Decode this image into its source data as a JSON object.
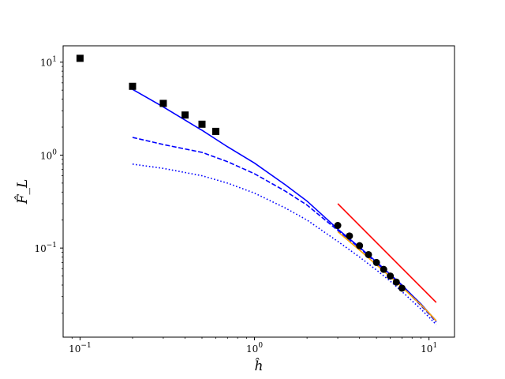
{
  "chart_data": {
    "type": "line",
    "xlabel": "ĥ",
    "ylabel": "F̂_L",
    "xscale": "log",
    "yscale": "log",
    "xlim": [
      0.08,
      14
    ],
    "ylim": [
      0.011,
      15
    ],
    "grid": false,
    "x_ticks": [
      {
        "value": 0.1,
        "base": "10",
        "exp": "−1"
      },
      {
        "value": 1,
        "base": "10",
        "exp": "0"
      },
      {
        "value": 10,
        "base": "10",
        "exp": "1"
      }
    ],
    "y_ticks": [
      {
        "value": 0.1,
        "base": "10",
        "exp": "−1"
      },
      {
        "value": 1,
        "base": "10",
        "exp": "0"
      },
      {
        "value": 10,
        "base": "10",
        "exp": "1"
      }
    ],
    "series": [
      {
        "kind": "line",
        "style": "solid",
        "color": "#0000ff",
        "x": [
          0.2,
          0.3,
          0.5,
          0.7,
          1.0,
          1.5,
          2.0,
          3.0,
          4.0,
          5.0,
          6.0,
          7.0,
          8.0,
          9.0,
          10.0,
          11.0
        ],
        "y": [
          5.1,
          3.3,
          1.85,
          1.23,
          0.82,
          0.48,
          0.32,
          0.16,
          0.102,
          0.071,
          0.052,
          0.04,
          0.031,
          0.025,
          0.02,
          0.0165
        ]
      },
      {
        "kind": "line",
        "style": "dashed",
        "color": "#0000ff",
        "x": [
          0.2,
          0.3,
          0.5,
          0.7,
          1.0,
          1.5,
          2.0,
          3.0,
          4.0,
          5.0,
          6.0,
          7.0,
          8.0,
          9.0,
          10.0,
          11.0
        ],
        "y": [
          1.55,
          1.3,
          1.07,
          0.85,
          0.63,
          0.41,
          0.29,
          0.155,
          0.1,
          0.069,
          0.051,
          0.039,
          0.03,
          0.024,
          0.0195,
          0.016
        ]
      },
      {
        "kind": "line",
        "style": "dotted",
        "color": "#0000ff",
        "x": [
          0.2,
          0.3,
          0.5,
          0.7,
          1.0,
          1.5,
          2.0,
          3.0,
          4.0,
          5.0,
          6.0,
          7.0,
          8.0,
          9.0,
          10.0,
          11.0
        ],
        "y": [
          0.8,
          0.72,
          0.6,
          0.5,
          0.39,
          0.27,
          0.2,
          0.118,
          0.08,
          0.058,
          0.044,
          0.034,
          0.027,
          0.022,
          0.018,
          0.015
        ]
      },
      {
        "kind": "line",
        "style": "solid",
        "color": "#ffa500",
        "x": [
          3.0,
          4.0,
          5.0,
          6.0,
          7.0,
          8.0,
          9.0,
          10.0,
          11.0
        ],
        "y": [
          0.15,
          0.095,
          0.066,
          0.049,
          0.038,
          0.03,
          0.0245,
          0.02,
          0.0165
        ]
      },
      {
        "kind": "line",
        "style": "solid",
        "color": "#ff0000",
        "x": [
          3.0,
          11.0
        ],
        "y": [
          0.3,
          0.026
        ]
      },
      {
        "kind": "markers",
        "marker": "square",
        "color": "#000000",
        "x": [
          0.1,
          0.2,
          0.3,
          0.4,
          0.5,
          0.6
        ],
        "y": [
          11.0,
          5.5,
          3.6,
          2.7,
          2.15,
          1.8
        ]
      },
      {
        "kind": "markers",
        "marker": "circle",
        "color": "#000000",
        "x": [
          3.0,
          3.5,
          4.0,
          4.5,
          5.0,
          5.5,
          6.0,
          6.5,
          7.0
        ],
        "y": [
          0.175,
          0.135,
          0.106,
          0.085,
          0.07,
          0.059,
          0.05,
          0.043,
          0.037
        ]
      }
    ]
  }
}
